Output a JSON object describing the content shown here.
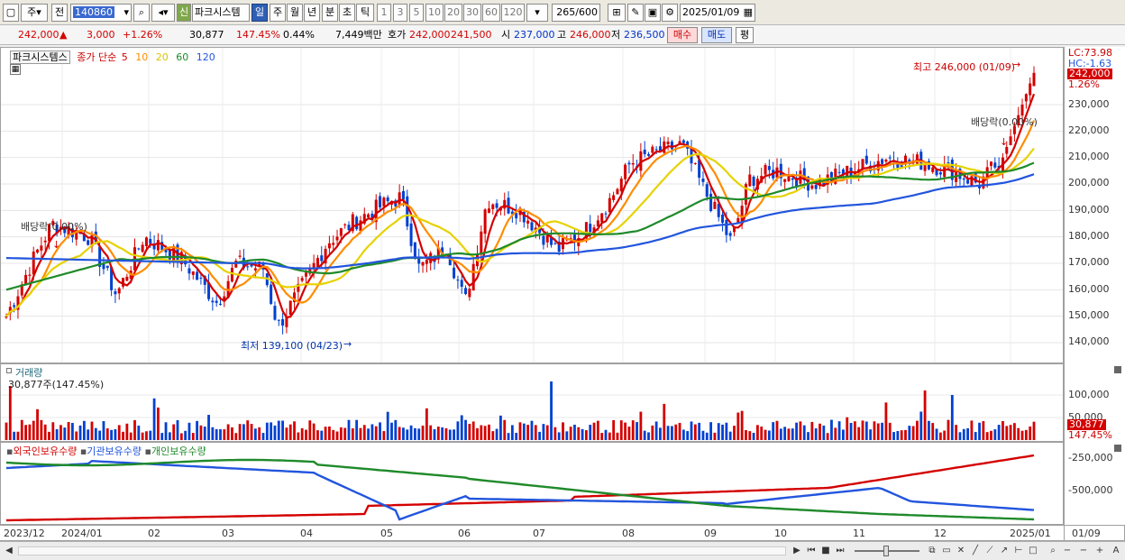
{
  "toolbar": {
    "market": "주",
    "prev": "전",
    "code": "140860",
    "name": "파크시스템",
    "signal": "신",
    "periods": [
      "일",
      "주",
      "월",
      "년",
      "분",
      "초",
      "틱"
    ],
    "minutes": [
      "1",
      "3",
      "5",
      "10",
      "20",
      "30",
      "60",
      "120"
    ],
    "count": "265",
    "count_total": "/600",
    "date": "2025/01/09"
  },
  "quote": {
    "price": "242,000",
    "change_arrow": "▲",
    "change": "3,000",
    "change_pct": "+1.26%",
    "volume": "30,877",
    "vol_ratio": "147.45%",
    "turnover_pct": "0.44%",
    "amount": "7,449백만",
    "bid_label": "호가",
    "ask": "242,000",
    "bid": "241,500",
    "open_label": "시",
    "open": "237,000",
    "high_label": "고",
    "high": "246,000",
    "low_label": "저",
    "low": "236,500",
    "buy": "매수",
    "sell": "매도",
    "avg": "평"
  },
  "price_panel": {
    "title": "파크시스템스",
    "ma_label": "종가 단순",
    "ma_periods": [
      "5",
      "10",
      "20",
      "60",
      "120"
    ],
    "ma_colors": [
      "#d40000",
      "#ff8c00",
      "#e6d200",
      "#1f8a2a",
      "#2255dd"
    ],
    "high_note": "최고 246,000 (01/09)",
    "low_note": "최저 139,100 (04/23)",
    "dividend1": "배당락(0.00%)",
    "dividend2": "배당락(0.00%)",
    "lc": "LC:73.98",
    "hc": "HC:-1.63",
    "tag_price": "242,000",
    "tag_pct": "1.26%",
    "y_ticks": [
      "230,000",
      "220,000",
      "210,000",
      "200,000",
      "190,000",
      "180,000",
      "170,000",
      "160,000",
      "150,000",
      "140,000"
    ]
  },
  "volume_panel": {
    "title": "거래량",
    "current": "30,877주(147.45%)",
    "tag_vol": "30,877",
    "tag_pct": "147.45%",
    "y_ticks": [
      "100,000",
      "50,000"
    ]
  },
  "holder_panel": {
    "titles": [
      "외국인보유수량",
      "기관보유수량",
      "개인보유수량"
    ],
    "colors": [
      "#d40000",
      "#2255dd",
      "#1f8a2a"
    ],
    "y_ticks": [
      "-250,000",
      "-500,000"
    ]
  },
  "x_axis": {
    "labels": [
      "2023/12",
      "2024/01",
      "02",
      "03",
      "04",
      "05",
      "06",
      "07",
      "08",
      "09",
      "10",
      "11",
      "12",
      "2025/01"
    ],
    "right_label": "01/09"
  },
  "colors": {
    "up": "#d40000",
    "down": "#0040d0",
    "accent": "#2f5fb5"
  }
}
